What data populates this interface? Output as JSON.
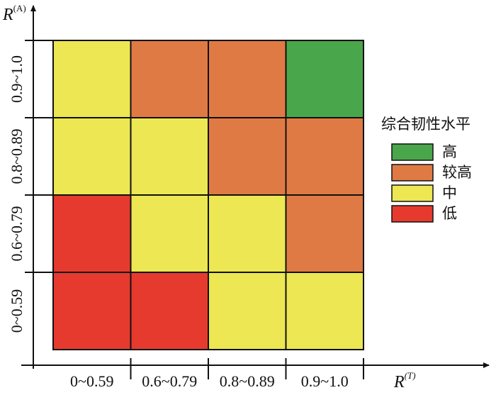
{
  "chart_data": {
    "type": "heatmap",
    "ylabel": "R",
    "ylabel_sup": "(A)",
    "xlabel": "R",
    "xlabel_sup": "(T)",
    "x_categories": [
      "0~0.59",
      "0.6~0.79",
      "0.8~0.89",
      "0.9~1.0"
    ],
    "y_categories": [
      "0~0.59",
      "0.6~0.79",
      "0.8~0.89",
      "0.9~1.0"
    ],
    "legend_title": "综合韧性水平",
    "levels": [
      {
        "name": "高",
        "color": "#4aa64a"
      },
      {
        "name": "较高",
        "color": "#e07a45"
      },
      {
        "name": "中",
        "color": "#ece752"
      },
      {
        "name": "低",
        "color": "#e63a2e"
      }
    ],
    "cells": [
      [
        "低",
        "低",
        "中",
        "中"
      ],
      [
        "低",
        "中",
        "中",
        "较高"
      ],
      [
        "中",
        "中",
        "较高",
        "较高"
      ],
      [
        "中",
        "较高",
        "较高",
        "高"
      ]
    ]
  }
}
